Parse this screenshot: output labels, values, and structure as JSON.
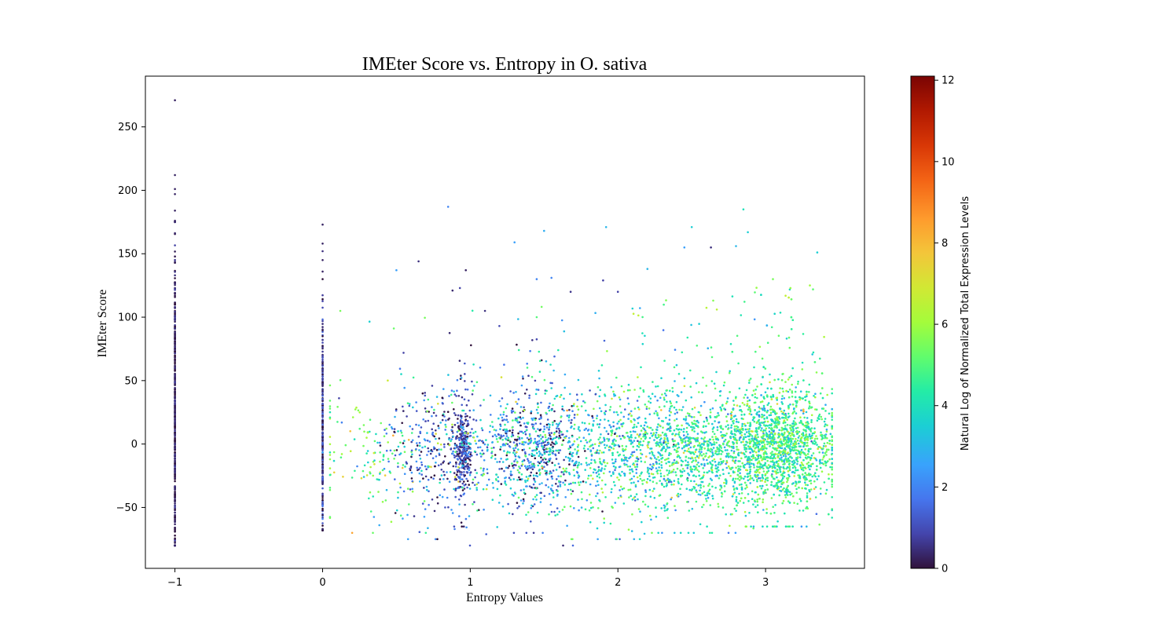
{
  "chart_data": {
    "type": "scatter",
    "title": "IMEter Score vs. Entropy in O. sativa",
    "xlabel": "Entropy Values",
    "ylabel": "IMEter Score",
    "xlim": [
      -1.2,
      3.67
    ],
    "ylim": [
      -98,
      290
    ],
    "xticks": [
      -1,
      0,
      1,
      2,
      3
    ],
    "xtick_labels": [
      "−1",
      "0",
      "1",
      "2",
      "3"
    ],
    "yticks": [
      -50,
      0,
      50,
      100,
      150,
      200,
      250
    ],
    "ytick_labels": [
      "−50",
      "0",
      "50",
      "100",
      "150",
      "200",
      "250"
    ],
    "grid": false,
    "legend": "none",
    "colorbar": {
      "label": "Natural Log of Normalized Total Expression Levels",
      "colormap": "turbo",
      "range": [
        0,
        12.1
      ],
      "ticks": [
        0,
        2,
        4,
        6,
        8,
        10,
        12
      ],
      "tick_labels": [
        "0",
        "2",
        "4",
        "6",
        "8",
        "10",
        "12"
      ]
    },
    "colors": {
      "axis": "#000000",
      "background": "#ffffff"
    },
    "points": [
      {
        "x": -1,
        "y": 271,
        "c": 0.3
      },
      {
        "x": -1,
        "y": 212,
        "c": 0.3
      },
      {
        "x": -1,
        "y": 201,
        "c": 0.3
      },
      {
        "x": -1,
        "y": 197,
        "c": 0.3
      },
      {
        "x": -1,
        "y": 184,
        "c": 0.3
      },
      {
        "x": -1,
        "y": 176,
        "c": 0.3
      },
      {
        "x": 0,
        "y": 173,
        "c": 0.3
      },
      {
        "x": 0,
        "y": 158,
        "c": 0.3
      },
      {
        "x": 0,
        "y": 152,
        "c": 0.5
      },
      {
        "x": 0,
        "y": 145,
        "c": 0.3
      },
      {
        "x": 0,
        "y": 136,
        "c": 0.3
      },
      {
        "x": 0.85,
        "y": 187,
        "c": 2.0
      },
      {
        "x": 1.3,
        "y": 159,
        "c": 2.5
      },
      {
        "x": 1.5,
        "y": 168,
        "c": 2.8
      },
      {
        "x": 1.92,
        "y": 171,
        "c": 3.0
      },
      {
        "x": 2.5,
        "y": 171,
        "c": 3.5
      },
      {
        "x": 2.85,
        "y": 185,
        "c": 4.0
      },
      {
        "x": 2.88,
        "y": 167,
        "c": 3.5
      },
      {
        "x": 2.45,
        "y": 155,
        "c": 2.5
      },
      {
        "x": 2.63,
        "y": 155,
        "c": 0.5
      },
      {
        "x": 2.8,
        "y": 156,
        "c": 3.0
      },
      {
        "x": 3.35,
        "y": 151,
        "c": 3.5
      },
      {
        "x": 0.65,
        "y": 144,
        "c": 0.5
      },
      {
        "x": 0.5,
        "y": 137,
        "c": 2.5
      },
      {
        "x": 0.97,
        "y": 137,
        "c": 0.3
      },
      {
        "x": 2.2,
        "y": 138,
        "c": 3.0
      },
      {
        "x": 1.45,
        "y": 130,
        "c": 2.0
      },
      {
        "x": 1.55,
        "y": 131,
        "c": 2.0
      },
      {
        "x": 1.9,
        "y": 129,
        "c": 0.8
      },
      {
        "x": 0.88,
        "y": 121,
        "c": 0.4
      },
      {
        "x": 0.93,
        "y": 123,
        "c": 0.8
      },
      {
        "x": 1.68,
        "y": 120,
        "c": 0.6
      },
      {
        "x": 2.0,
        "y": 120,
        "c": 0.8
      },
      {
        "x": 1.1,
        "y": 105,
        "c": 0.5
      },
      {
        "x": 0.12,
        "y": 105,
        "c": 5.5
      },
      {
        "x": 3.05,
        "y": 130,
        "c": 5.5
      },
      {
        "x": 3.3,
        "y": 125,
        "c": 6.0
      },
      {
        "x": 2.67,
        "y": 106,
        "c": 6.5
      },
      {
        "x": 1.45,
        "y": 100,
        "c": 5.0
      }
    ],
    "clusters": [
      {
        "x": -1,
        "x_spread": 0.0,
        "y_center": 20,
        "y_spread": 70,
        "y_min": -80,
        "y_max": 175,
        "c_center": 0.3,
        "c_spread": 0.25,
        "n": 420
      },
      {
        "x": 0,
        "x_spread": 0.0,
        "y_center": 10,
        "y_spread": 45,
        "y_min": -68,
        "y_max": 130,
        "c_center": 0.6,
        "c_spread": 0.6,
        "n": 260
      },
      {
        "x": 0.35,
        "x_spread": 0.22,
        "y_center": -5,
        "y_spread": 22,
        "y_min": -70,
        "y_max": 100,
        "c_center": 5.2,
        "c_spread": 1.4,
        "n": 150
      },
      {
        "x": 0.95,
        "x_spread": 0.03,
        "y_center": -5,
        "y_spread": 15,
        "y_min": -65,
        "y_max": 70,
        "c_center": 0.8,
        "c_spread": 0.6,
        "n": 260
      },
      {
        "x": 0.8,
        "x_spread": 0.17,
        "y_center": -8,
        "y_spread": 26,
        "y_min": -75,
        "y_max": 90,
        "c_center": 1.3,
        "c_spread": 1.1,
        "n": 300
      },
      {
        "x": 1.45,
        "x_spread": 0.14,
        "y_center": -3,
        "y_spread": 22,
        "y_min": -70,
        "y_max": 100,
        "c_center": 1.6,
        "c_spread": 1.2,
        "n": 420
      },
      {
        "x": 1.35,
        "x_spread": 0.35,
        "y_center": -5,
        "y_spread": 25,
        "y_min": -80,
        "y_max": 110,
        "c_center": 3.6,
        "c_spread": 1.4,
        "n": 420
      },
      {
        "x": 2.05,
        "x_spread": 0.28,
        "y_center": -5,
        "y_spread": 24,
        "y_min": -75,
        "y_max": 110,
        "c_center": 3.8,
        "c_spread": 1.4,
        "n": 650
      },
      {
        "x": 2.55,
        "x_spread": 0.25,
        "y_center": -5,
        "y_spread": 22,
        "y_min": -70,
        "y_max": 115,
        "c_center": 4.2,
        "c_spread": 1.1,
        "n": 900
      },
      {
        "x": 3.1,
        "x_spread": 0.18,
        "y_center": -2,
        "y_spread": 22,
        "y_min": -65,
        "y_max": 125,
        "c_center": 4.6,
        "c_spread": 1.0,
        "n": 1900
      }
    ]
  }
}
